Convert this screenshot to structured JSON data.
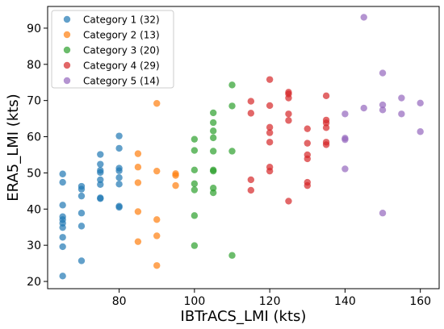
{
  "chart_data": {
    "type": "scatter",
    "title": "",
    "xlabel": "IBTrACS_LMI (kts)",
    "ylabel": "ERA5_LMI (kts)",
    "xlim": [
      61,
      165
    ],
    "ylim": [
      18,
      96
    ],
    "xticks": [
      80,
      100,
      120,
      140,
      160
    ],
    "yticks": [
      20,
      30,
      40,
      50,
      60,
      70,
      80,
      90
    ],
    "grid": false,
    "legend_position": "top-left",
    "series": [
      {
        "name": "Category 1 (32)",
        "color": "#1f77b4",
        "points": [
          [
            65,
            21.5
          ],
          [
            65,
            29.6
          ],
          [
            65,
            32.2
          ],
          [
            65,
            34.9
          ],
          [
            65,
            36.1
          ],
          [
            65,
            37.1
          ],
          [
            65,
            37.9
          ],
          [
            65,
            41.1
          ],
          [
            65,
            47.4
          ],
          [
            65,
            49.7
          ],
          [
            70,
            25.7
          ],
          [
            70,
            35.3
          ],
          [
            70,
            38.9
          ],
          [
            70,
            43.6
          ],
          [
            70,
            45.5
          ],
          [
            70,
            46.3
          ],
          [
            75,
            42.9
          ],
          [
            75,
            43.1
          ],
          [
            75,
            46.8
          ],
          [
            75,
            48.1
          ],
          [
            75,
            50.1
          ],
          [
            75,
            50.7
          ],
          [
            75,
            52.4
          ],
          [
            75,
            55.1
          ],
          [
            80,
            40.5
          ],
          [
            80,
            40.8
          ],
          [
            80,
            46.9
          ],
          [
            80,
            48.7
          ],
          [
            80,
            50.6
          ],
          [
            80,
            51.3
          ],
          [
            80,
            56.8
          ],
          [
            80,
            60.2
          ]
        ]
      },
      {
        "name": "Category 2 (13)",
        "color": "#ff7f0e",
        "points": [
          [
            85,
            31.0
          ],
          [
            85,
            39.3
          ],
          [
            85,
            47.3
          ],
          [
            85,
            51.6
          ],
          [
            85,
            55.3
          ],
          [
            90,
            24.4
          ],
          [
            90,
            32.6
          ],
          [
            90,
            37.1
          ],
          [
            90,
            50.5
          ],
          [
            90,
            69.2
          ],
          [
            95,
            46.5
          ],
          [
            95,
            49.3
          ],
          [
            95,
            49.8
          ]
        ]
      },
      {
        "name": "Category 3 (20)",
        "color": "#2ca02c",
        "points": [
          [
            100,
            29.9
          ],
          [
            100,
            38.2
          ],
          [
            100,
            45.3
          ],
          [
            100,
            47.0
          ],
          [
            100,
            50.8
          ],
          [
            100,
            56.2
          ],
          [
            100,
            59.3
          ],
          [
            105,
            44.5
          ],
          [
            105,
            45.8
          ],
          [
            105,
            50.5
          ],
          [
            105,
            50.8
          ],
          [
            105,
            56.0
          ],
          [
            105,
            59.7
          ],
          [
            105,
            61.6
          ],
          [
            105,
            63.9
          ],
          [
            105,
            66.6
          ],
          [
            110,
            27.2
          ],
          [
            110,
            56.0
          ],
          [
            110,
            68.5
          ],
          [
            110,
            74.3
          ]
        ]
      },
      {
        "name": "Category 4 (29)",
        "color": "#d62728",
        "points": [
          [
            115,
            45.2
          ],
          [
            115,
            48.1
          ],
          [
            115,
            66.5
          ],
          [
            115,
            69.8
          ],
          [
            120,
            50.5
          ],
          [
            120,
            51.6
          ],
          [
            120,
            58.5
          ],
          [
            120,
            61.1
          ],
          [
            120,
            62.6
          ],
          [
            120,
            68.6
          ],
          [
            120,
            75.8
          ],
          [
            125,
            42.2
          ],
          [
            125,
            64.5
          ],
          [
            125,
            66.3
          ],
          [
            125,
            70.7
          ],
          [
            125,
            71.8
          ],
          [
            125,
            72.3
          ],
          [
            130,
            46.5
          ],
          [
            130,
            47.4
          ],
          [
            130,
            53.9
          ],
          [
            130,
            55.0
          ],
          [
            130,
            58.2
          ],
          [
            130,
            62.2
          ],
          [
            135,
            57.8
          ],
          [
            135,
            58.5
          ],
          [
            135,
            62.5
          ],
          [
            135,
            63.8
          ],
          [
            135,
            64.6
          ],
          [
            135,
            71.3
          ]
        ]
      },
      {
        "name": "Category 5 (14)",
        "color": "#9467bd",
        "points": [
          [
            140,
            51.1
          ],
          [
            140,
            59.2
          ],
          [
            140,
            59.6
          ],
          [
            140,
            66.3
          ],
          [
            145,
            67.9
          ],
          [
            145,
            93.0
          ],
          [
            150,
            38.9
          ],
          [
            150,
            67.4
          ],
          [
            150,
            68.8
          ],
          [
            150,
            77.6
          ],
          [
            155,
            66.3
          ],
          [
            155,
            70.7
          ],
          [
            160,
            61.4
          ],
          [
            160,
            69.3
          ]
        ]
      }
    ]
  }
}
